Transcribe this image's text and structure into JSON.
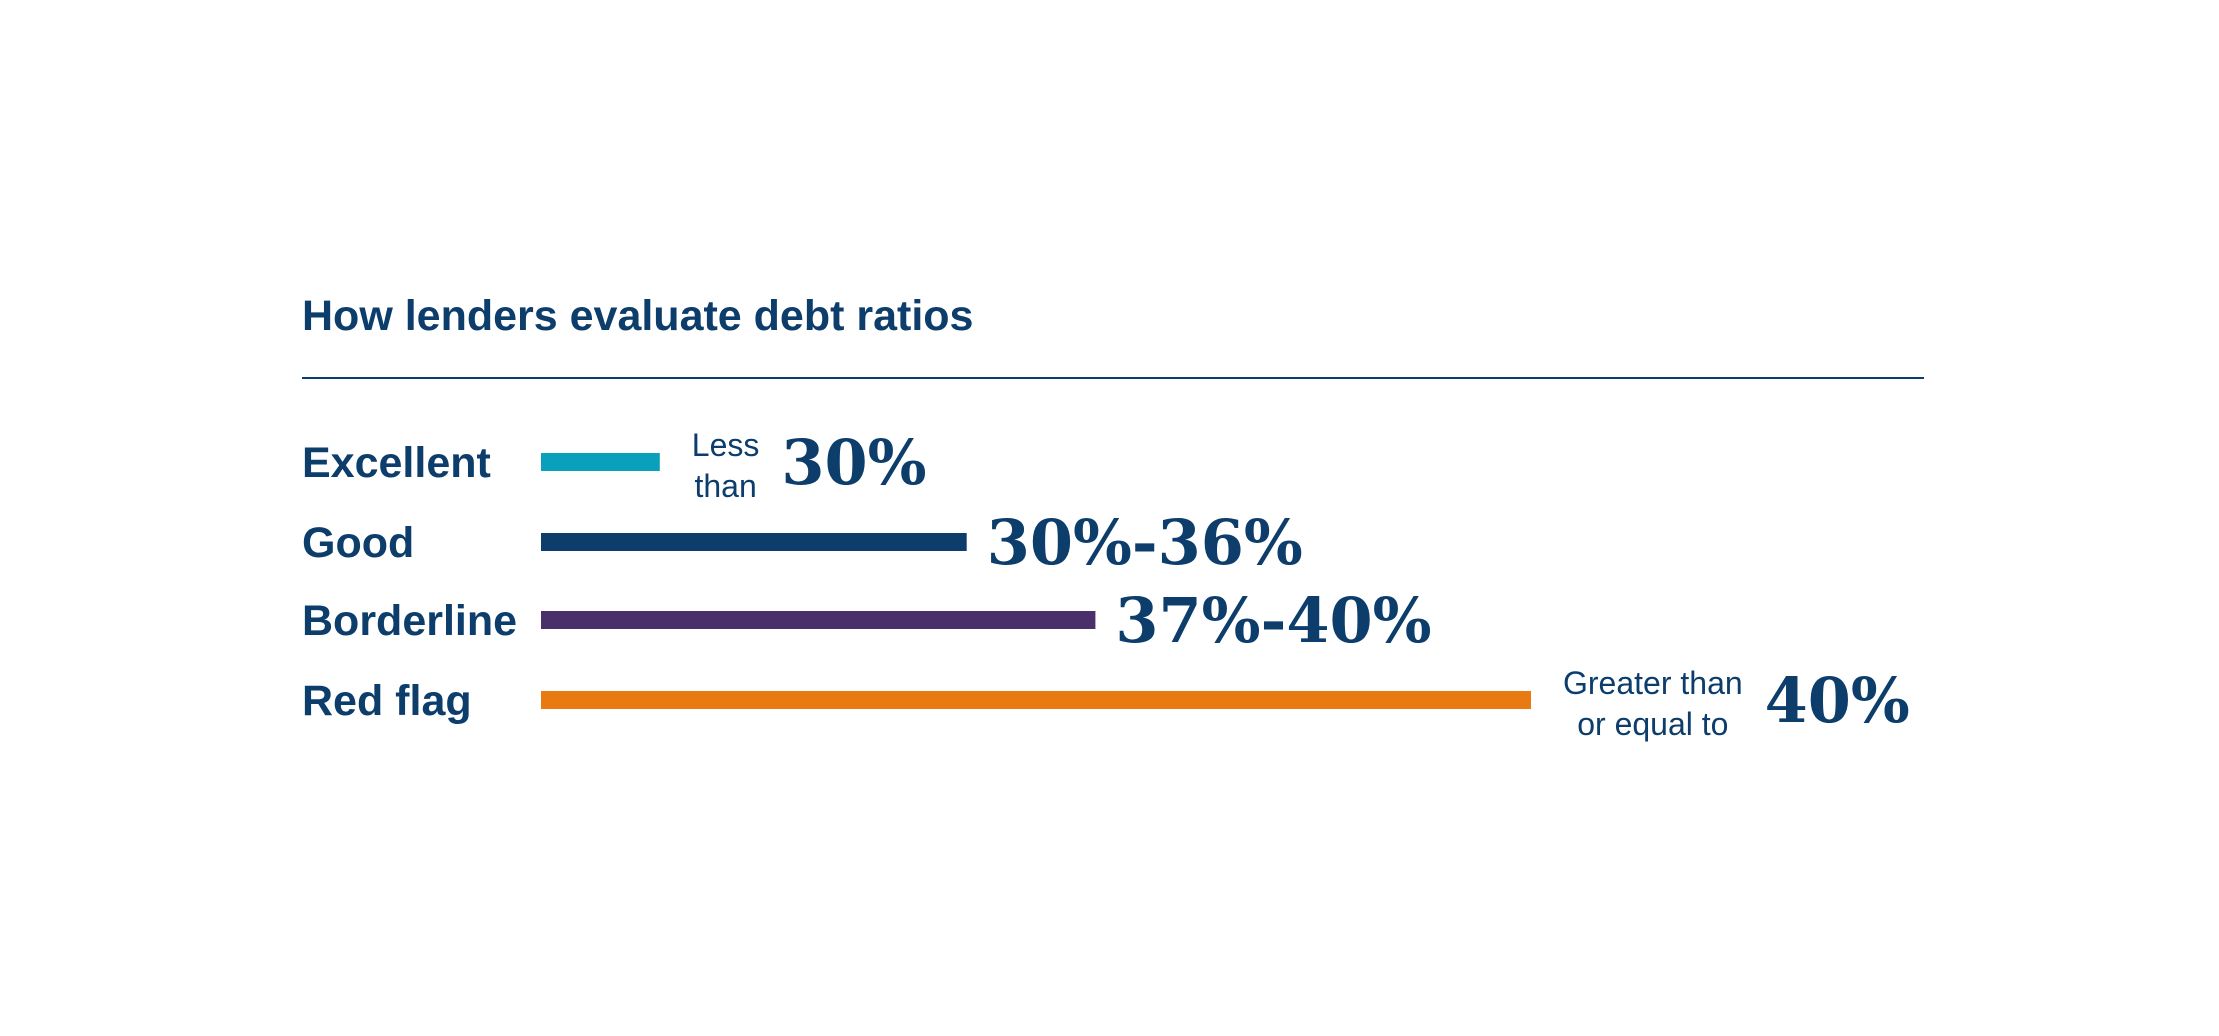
{
  "chart_data": {
    "type": "bar",
    "title": "How lenders evaluate debt ratios",
    "orientation": "horizontal",
    "categories": [
      "Excellent",
      "Good",
      "Borderline",
      "Red flag"
    ],
    "rows": [
      {
        "category": "Excellent",
        "range": "Less than 30%",
        "prefix_lines": [
          "Less",
          "than"
        ],
        "value_label": "30%",
        "color": "#0aa0bb",
        "relative_length": 0.12
      },
      {
        "category": "Good",
        "range": "30%-36%",
        "prefix_lines": [],
        "value_label": "30%-36%",
        "color": "#0d3d6b",
        "relative_length": 0.43
      },
      {
        "category": "Borderline",
        "range": "37%-40%",
        "prefix_lines": [],
        "value_label": "37%-40%",
        "color": "#4b2f6b",
        "relative_length": 0.56
      },
      {
        "category": "Red flag",
        "range": "Greater than or equal to 40%",
        "prefix_lines": [
          "Greater than",
          "or equal to"
        ],
        "value_label": "40%",
        "color": "#e97a12",
        "relative_length": 1.0
      }
    ],
    "grid": false,
    "legend": "none"
  },
  "colors": {
    "text": "#0d3d6b",
    "rule": "#0d3d6b",
    "background": "#ffffff"
  }
}
